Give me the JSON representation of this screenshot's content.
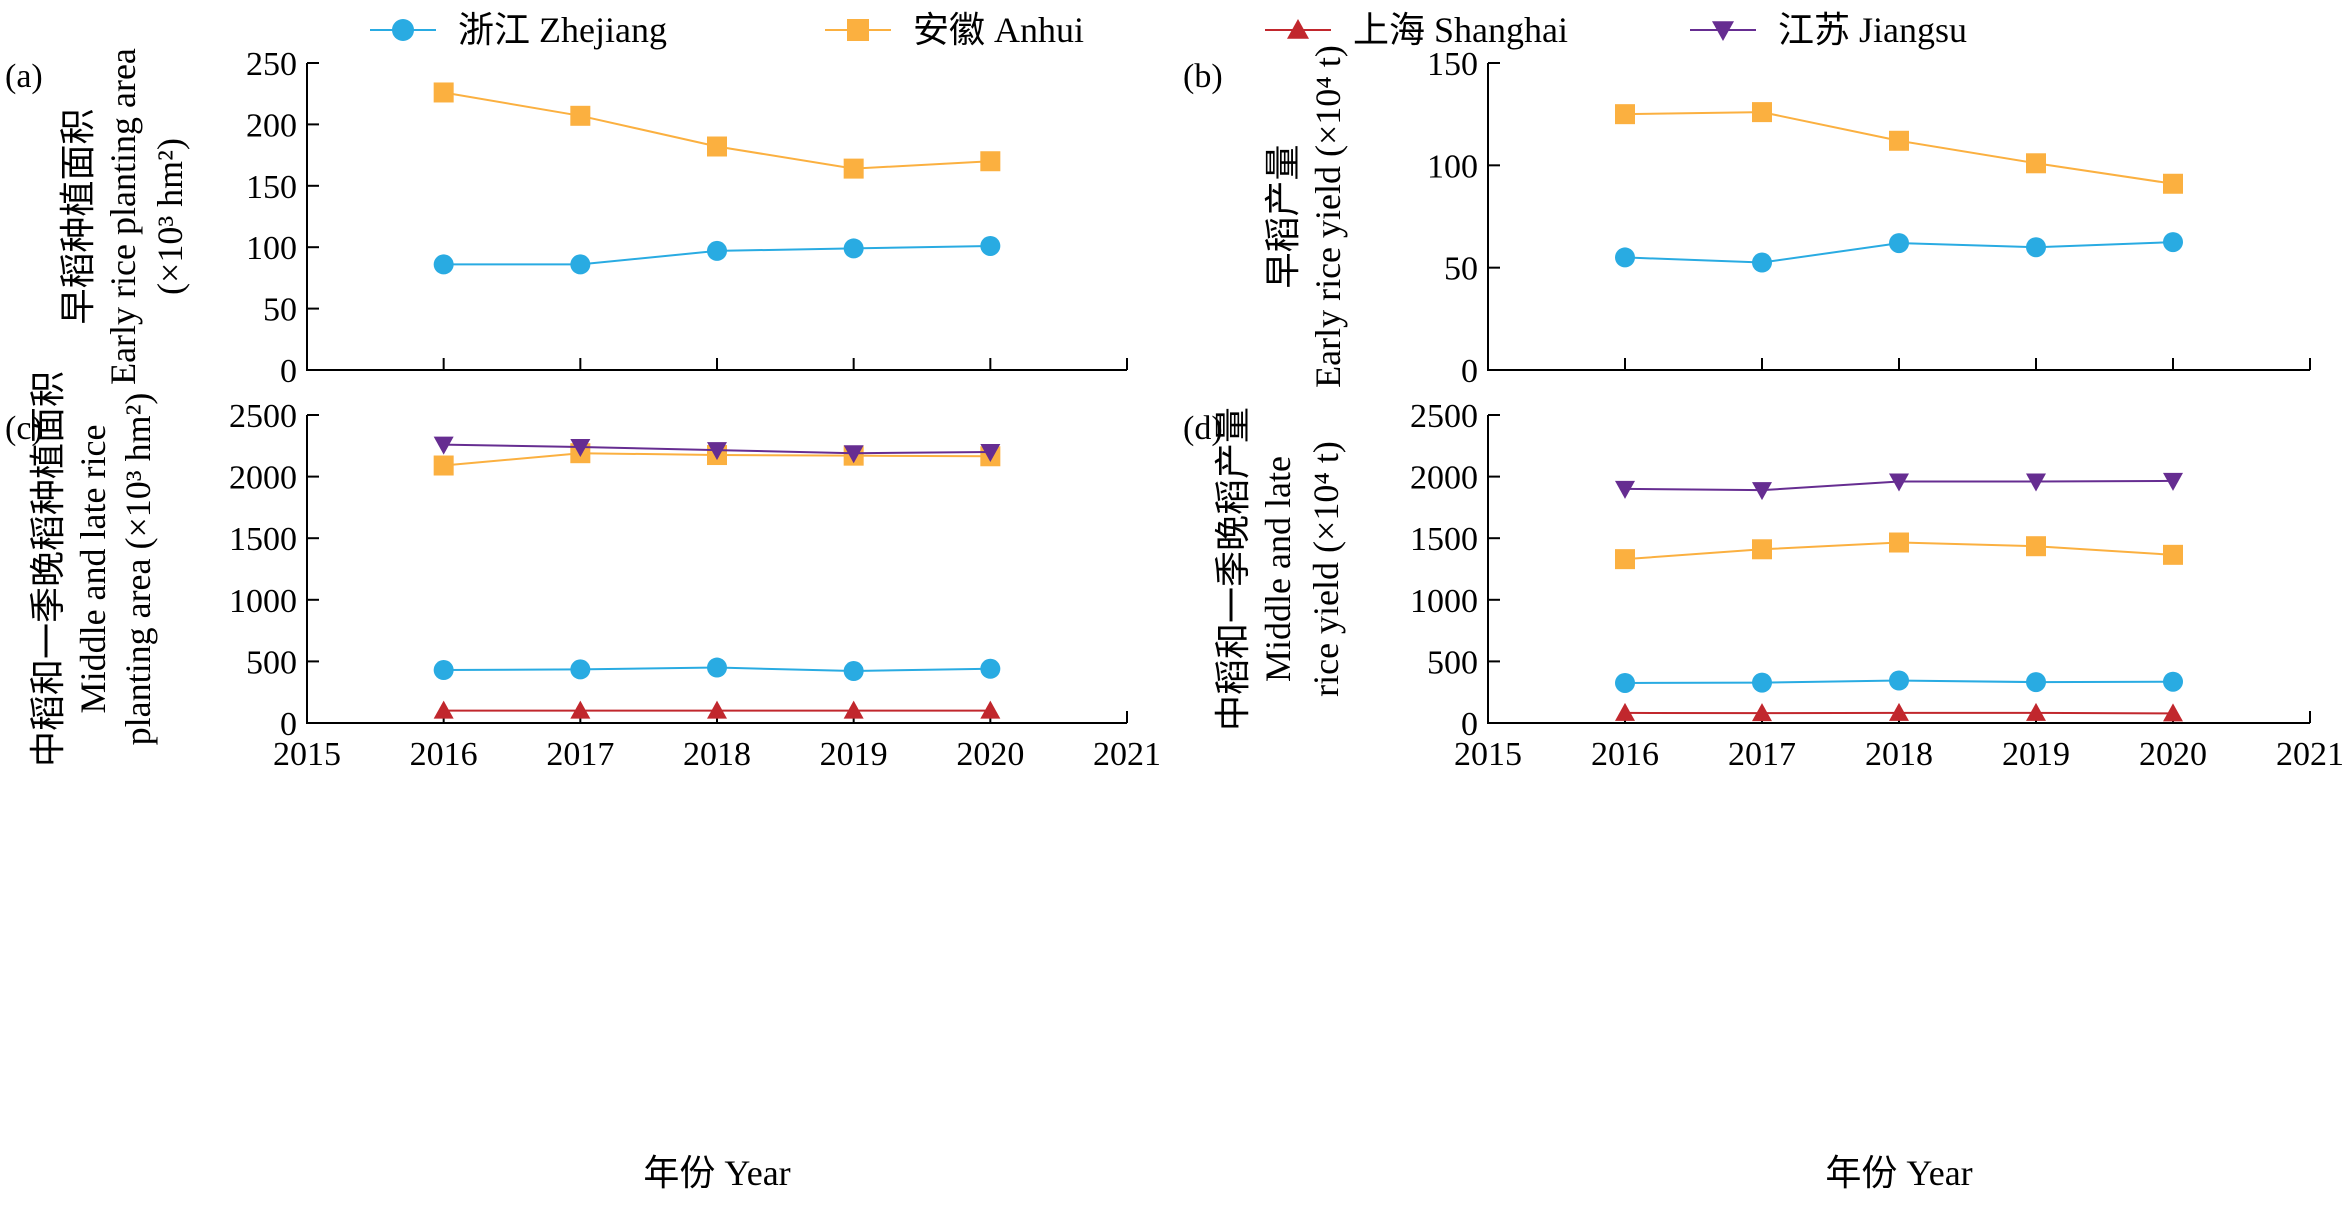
{
  "legend": {
    "placement": "top",
    "items": [
      {
        "key": "zhejiang",
        "label": "浙江 Zhejiang",
        "marker": "circle",
        "color": "#29abe2"
      },
      {
        "key": "anhui",
        "label": "安徽 Anhui",
        "marker": "square",
        "color": "#fbb040"
      },
      {
        "key": "shanghai",
        "label": "上海 Shanghai",
        "marker": "triangle-up",
        "color": "#c1272d"
      },
      {
        "key": "jiangsu",
        "label": "江苏 Jiangsu",
        "marker": "triangle-down",
        "color": "#662d91"
      }
    ]
  },
  "shared_xlabel": "年份 Year",
  "chart_data": [
    {
      "panel": "(a)",
      "type": "line",
      "ylabel_lines": [
        "早稻种植面积",
        "Early rice planting area",
        "(×10³ hm²)"
      ],
      "xlim": [
        2015,
        2021
      ],
      "xticks": [
        2015,
        2016,
        2017,
        2018,
        2019,
        2020,
        2021
      ],
      "show_x_tick_labels": false,
      "ylim": [
        0,
        250
      ],
      "yticks": [
        0,
        50,
        100,
        150,
        200,
        250
      ],
      "grid": false,
      "x": [
        2016,
        2017,
        2018,
        2019,
        2020
      ],
      "series": [
        {
          "name": "浙江 Zhejiang",
          "key": "zhejiang",
          "values": [
            86,
            86,
            97,
            99,
            101
          ]
        },
        {
          "name": "安徽 Anhui",
          "key": "anhui",
          "values": [
            226,
            207,
            182,
            164,
            170
          ]
        }
      ]
    },
    {
      "panel": "(b)",
      "type": "line",
      "ylabel_lines": [
        "早稻产量",
        "Early rice yield (×10⁴ t)"
      ],
      "xlim": [
        2015,
        2021
      ],
      "xticks": [
        2015,
        2016,
        2017,
        2018,
        2019,
        2020,
        2021
      ],
      "show_x_tick_labels": false,
      "ylim": [
        0,
        150
      ],
      "yticks": [
        0,
        50,
        100,
        150
      ],
      "grid": false,
      "x": [
        2016,
        2017,
        2018,
        2019,
        2020
      ],
      "series": [
        {
          "name": "浙江 Zhejiang",
          "key": "zhejiang",
          "values": [
            55,
            52.5,
            62,
            60,
            62.5
          ]
        },
        {
          "name": "安徽 Anhui",
          "key": "anhui",
          "values": [
            125,
            126,
            112,
            101,
            91
          ]
        }
      ]
    },
    {
      "panel": "(c)",
      "type": "line",
      "ylabel_lines": [
        "中稻和一季晚稻种植面积",
        "Middle and late rice",
        "planting area (×10³ hm²)"
      ],
      "xlim": [
        2015,
        2021
      ],
      "xticks": [
        2015,
        2016,
        2017,
        2018,
        2019,
        2020,
        2021
      ],
      "show_x_tick_labels": true,
      "ylim": [
        0,
        2500
      ],
      "yticks": [
        0,
        500,
        1000,
        1500,
        2000,
        2500
      ],
      "grid": false,
      "x": [
        2016,
        2017,
        2018,
        2019,
        2020
      ],
      "series": [
        {
          "name": "浙江 Zhejiang",
          "key": "zhejiang",
          "values": [
            430,
            435,
            450,
            422,
            440
          ]
        },
        {
          "name": "安徽 Anhui",
          "key": "anhui",
          "values": [
            2090,
            2190,
            2175,
            2170,
            2165
          ]
        },
        {
          "name": "上海 Shanghai",
          "key": "shanghai",
          "values": [
            100,
            100,
            100,
            100,
            100
          ]
        },
        {
          "name": "江苏 Jiangsu",
          "key": "jiangsu",
          "values": [
            2260,
            2240,
            2215,
            2190,
            2200
          ]
        }
      ]
    },
    {
      "panel": "(d)",
      "type": "line",
      "ylabel_lines": [
        "中稻和一季晚稻产量",
        "Middle and late",
        "rice yield (×10⁴ t)"
      ],
      "xlim": [
        2015,
        2021
      ],
      "xticks": [
        2015,
        2016,
        2017,
        2018,
        2019,
        2020,
        2021
      ],
      "show_x_tick_labels": true,
      "ylim": [
        0,
        2500
      ],
      "yticks": [
        0,
        500,
        1000,
        1500,
        2000,
        2500
      ],
      "grid": false,
      "x": [
        2016,
        2017,
        2018,
        2019,
        2020
      ],
      "series": [
        {
          "name": "浙江 Zhejiang",
          "key": "zhejiang",
          "values": [
            325,
            328,
            345,
            332,
            335
          ]
        },
        {
          "name": "安徽 Anhui",
          "key": "anhui",
          "values": [
            1330,
            1410,
            1465,
            1435,
            1365
          ]
        },
        {
          "name": "上海 Shanghai",
          "key": "shanghai",
          "values": [
            82,
            80,
            82,
            82,
            78
          ]
        },
        {
          "name": "江苏 Jiangsu",
          "key": "jiangsu",
          "values": [
            1900,
            1890,
            1960,
            1960,
            1965
          ]
        }
      ]
    }
  ]
}
